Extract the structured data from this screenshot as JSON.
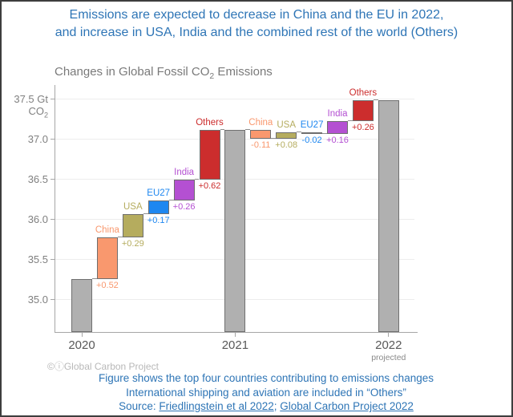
{
  "header": {
    "title_line1": "Emissions are expected to decrease in China and the EU in 2022,",
    "title_line2": "and increase in USA, India and the combined rest of the world (Others)"
  },
  "chart_data": {
    "type": "waterfall",
    "title": {
      "prefix": "Changes in Global Fossil CO",
      "subscript": "2",
      "suffix": " Emissions"
    },
    "yaxis": {
      "ticks": [
        35.0,
        35.5,
        36.0,
        36.5,
        37.0,
        37.5
      ],
      "unit_line1": "Gt",
      "unit_line2_base": "CO",
      "unit_line2_sub": "2",
      "ylim": [
        34.6,
        37.7
      ]
    },
    "xaxis": {
      "groups": [
        {
          "label": "2020",
          "sublabel": ""
        },
        {
          "label": "2021",
          "sublabel": ""
        },
        {
          "label": "2022",
          "sublabel": "projected"
        }
      ]
    },
    "palette": {
      "total_fill": "#B0B0B0",
      "total_border": "#707070",
      "bar_border": "#6E6E6E",
      "china": "#F9986E",
      "usa": "#B5AC5E",
      "eu27": "#1E87F0",
      "india": "#B450D2",
      "others": "#CC2D2D",
      "grid": "#EDEDED",
      "axis": "#A6A6A6",
      "accent_blue": "#2E75B6"
    },
    "bars": [
      {
        "kind": "total",
        "label": "2020",
        "value": 35.26
      },
      {
        "kind": "delta",
        "label": "China",
        "series": "china",
        "change": 0.52,
        "value_label": "+0.52"
      },
      {
        "kind": "delta",
        "label": "USA",
        "series": "usa",
        "change": 0.29,
        "value_label": "+0.29"
      },
      {
        "kind": "delta",
        "label": "EU27",
        "series": "eu27",
        "change": 0.17,
        "value_label": "+0.17"
      },
      {
        "kind": "delta",
        "label": "India",
        "series": "india",
        "change": 0.26,
        "value_label": "+0.26"
      },
      {
        "kind": "delta",
        "label": "Others",
        "series": "others",
        "change": 0.62,
        "value_label": "+0.62"
      },
      {
        "kind": "total",
        "label": "2021",
        "value": 37.12
      },
      {
        "kind": "delta",
        "label": "China",
        "series": "china",
        "change": -0.11,
        "value_label": "-0.11"
      },
      {
        "kind": "delta",
        "label": "USA",
        "series": "usa",
        "change": 0.08,
        "value_label": "+0.08"
      },
      {
        "kind": "delta",
        "label": "EU27",
        "series": "eu27",
        "change": -0.02,
        "value_label": "-0.02"
      },
      {
        "kind": "delta",
        "label": "India",
        "series": "india",
        "change": 0.16,
        "value_label": "+0.16"
      },
      {
        "kind": "delta",
        "label": "Others",
        "series": "others",
        "change": 0.26,
        "value_label": "+0.26"
      },
      {
        "kind": "total",
        "label": "2022",
        "value": 37.49
      }
    ]
  },
  "watermark": {
    "icons": "©ⓘ",
    "text": "Global Carbon Project"
  },
  "caption": {
    "line1": "Figure shows the top four countries contributing to emissions changes",
    "line2": "International shipping and aviation are included in “Others”",
    "source_prefix": "Source: ",
    "link1": "Friedlingstein et al 2022",
    "separator": "; ",
    "link2": "Global Carbon Project 2022"
  }
}
